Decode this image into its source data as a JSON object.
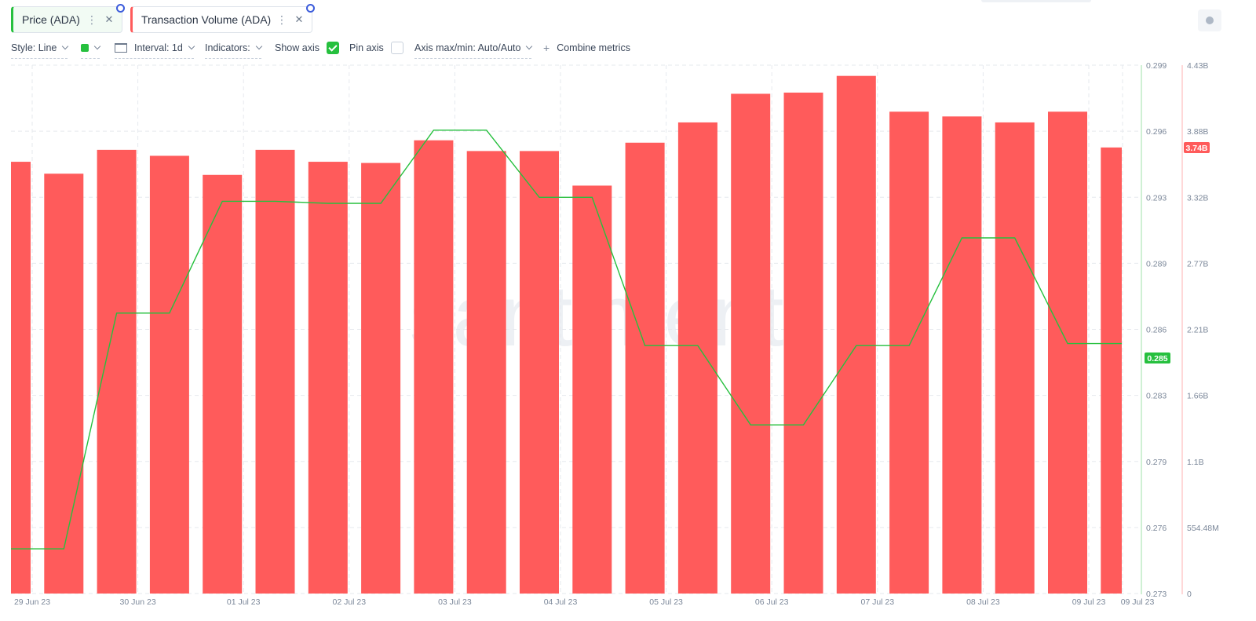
{
  "metrics": [
    {
      "label": "Price (ADA)",
      "color": "#26c03e"
    },
    {
      "label": "Transaction Volume (ADA)",
      "color": "#ff5b5b"
    }
  ],
  "toolbar": {
    "style": "Style: Line",
    "interval": "Interval: 1d",
    "indicators": "Indicators:",
    "show_axis": "Show axis",
    "show_axis_checked": true,
    "pin_axis": "Pin axis",
    "pin_axis_checked": false,
    "axis_maxmin": "Axis max/min: Auto/Auto",
    "combine": "Combine metrics"
  },
  "chart_data": {
    "type": "bar+line",
    "x_tick_labels": [
      "29 Jun 23",
      "30 Jun 23",
      "01 Jul 23",
      "02 Jul 23",
      "03 Jul 23",
      "04 Jul 23",
      "05 Jul 23",
      "06 Jul 23",
      "07 Jul 23",
      "08 Jul 23",
      "09 Jul 23",
      "09 Jul 23"
    ],
    "series": [
      {
        "name": "Transaction Volume (ADA)",
        "type": "bar",
        "color": "#ff5b5b",
        "axis": "right",
        "values": [
          3.62,
          3.52,
          3.72,
          3.67,
          3.51,
          3.72,
          3.62,
          3.61,
          3.8,
          3.71,
          3.71,
          3.42,
          3.78,
          3.95,
          4.19,
          4.2,
          4.34,
          4.04,
          4.0,
          3.95,
          4.04,
          3.74
        ]
      },
      {
        "name": "Price (ADA)",
        "type": "line",
        "color": "#26c03e",
        "axis": "left",
        "values": [
          0.2752,
          0.2752,
          0.2868,
          0.2868,
          0.2923,
          0.2923,
          0.2922,
          0.2922,
          0.2958,
          0.2958,
          0.2925,
          0.2925,
          0.2852,
          0.2852,
          0.2813,
          0.2813,
          0.2852,
          0.2852,
          0.2905,
          0.2905,
          0.2853,
          0.2853
        ]
      }
    ],
    "right_axis": {
      "ticks": [
        "4.43B",
        "3.88B",
        "3.32B",
        "2.77B",
        "2.21B",
        "1.66B",
        "1.1B",
        "554.48M",
        "0"
      ],
      "max": 4.43,
      "min": 0,
      "unit": "B"
    },
    "left_axis": {
      "ticks": [
        "0.299",
        "0.296",
        "0.293",
        "0.289",
        "0.286",
        "0.283",
        "0.279",
        "0.276",
        "0.273"
      ],
      "max": 0.299,
      "min": 0.273
    },
    "current_price_label": "0.285",
    "current_volume_label": "3.74B",
    "grid": true,
    "watermark": "santiment"
  }
}
